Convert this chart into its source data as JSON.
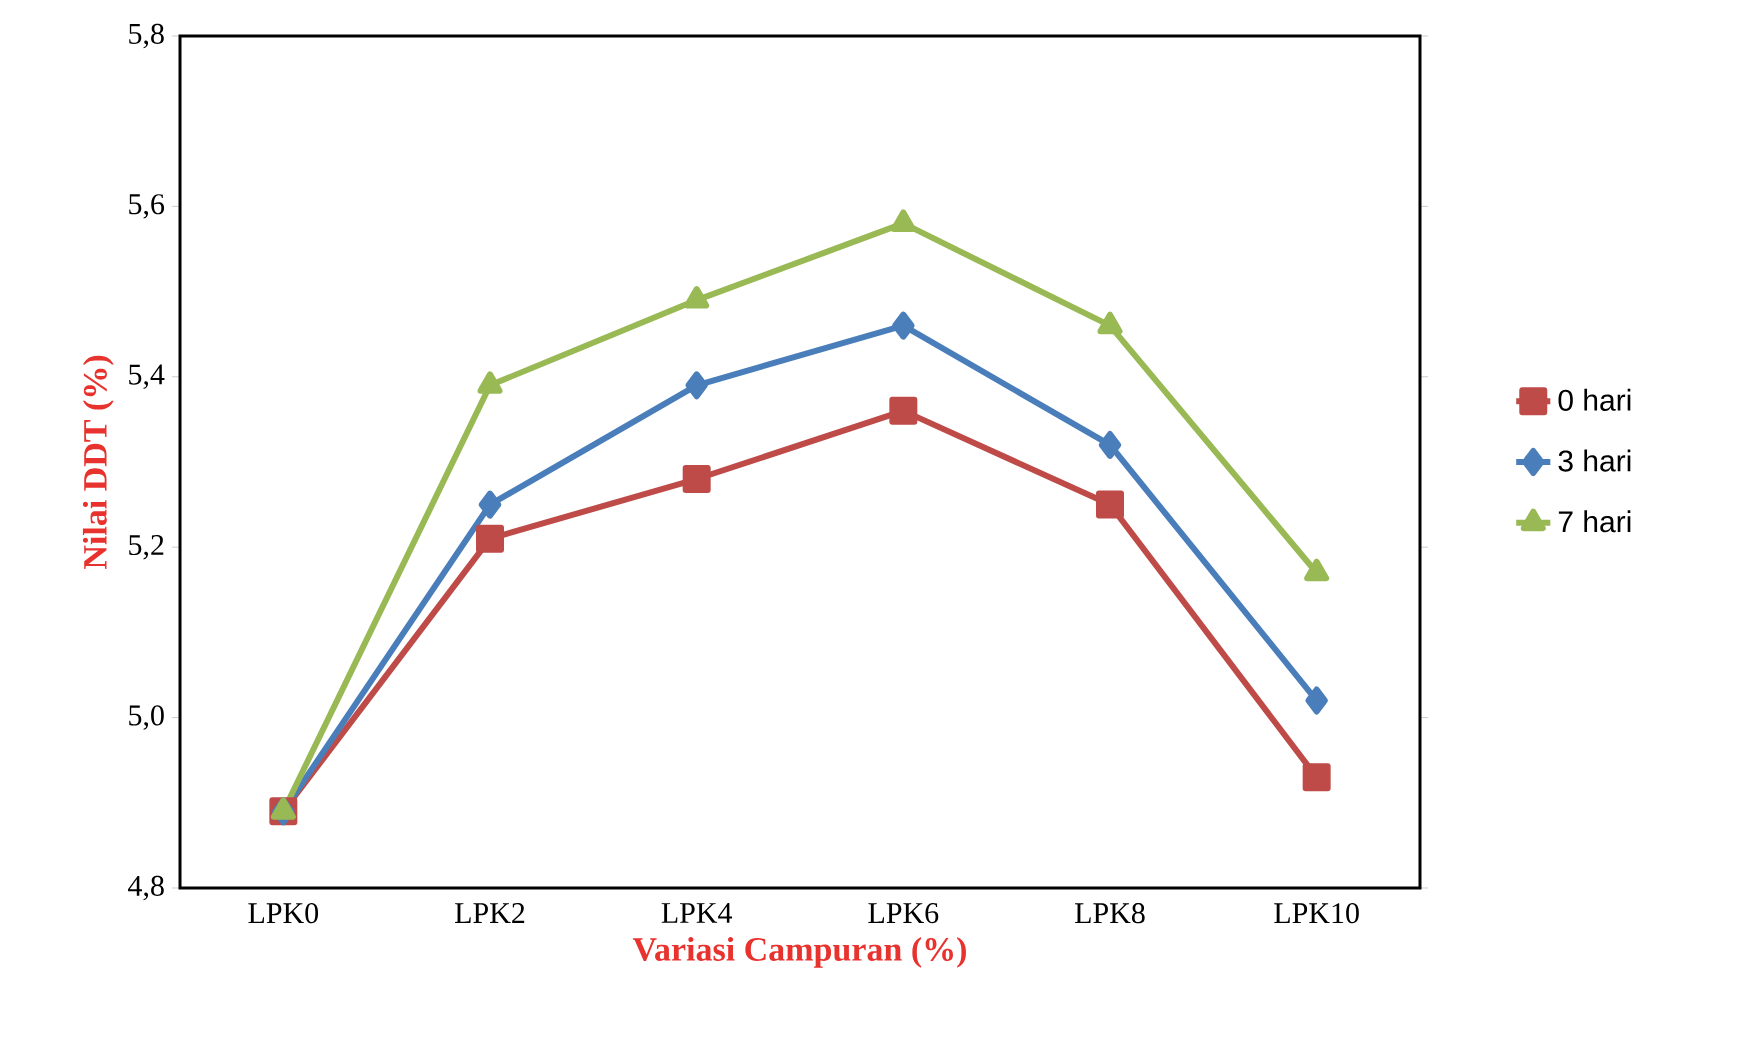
{
  "chart_data": {
    "type": "line",
    "xlabel": "Variasi Campuran (%)",
    "ylabel": "Nilai DDT (%)",
    "categories": [
      "LPK0",
      "LPK2",
      "LPK4",
      "LPK6",
      "LPK8",
      "LPK10"
    ],
    "series": [
      {
        "name": "0 hari",
        "color": "#be4b48",
        "marker": "square",
        "values": [
          4.89,
          5.21,
          5.28,
          5.36,
          5.25,
          4.93
        ]
      },
      {
        "name": "3 hari",
        "color": "#4a7ebb",
        "marker": "diamond",
        "values": [
          4.89,
          5.25,
          5.39,
          5.46,
          5.32,
          5.02
        ]
      },
      {
        "name": "7 hari",
        "color": "#98b954",
        "marker": "triangle",
        "values": [
          4.89,
          5.39,
          5.49,
          5.58,
          5.46,
          5.17
        ]
      }
    ],
    "ylim": [
      4.8,
      5.8
    ],
    "yticks": [
      {
        "value": 4.8,
        "label": "4,8"
      },
      {
        "value": 5.0,
        "label": "5,0"
      },
      {
        "value": 5.2,
        "label": "5,2"
      },
      {
        "value": 5.4,
        "label": "5,4"
      },
      {
        "value": 5.6,
        "label": "5,6"
      },
      {
        "value": 5.8,
        "label": "5,8"
      }
    ],
    "legend": "right",
    "grid": false,
    "line_style": "solid"
  }
}
